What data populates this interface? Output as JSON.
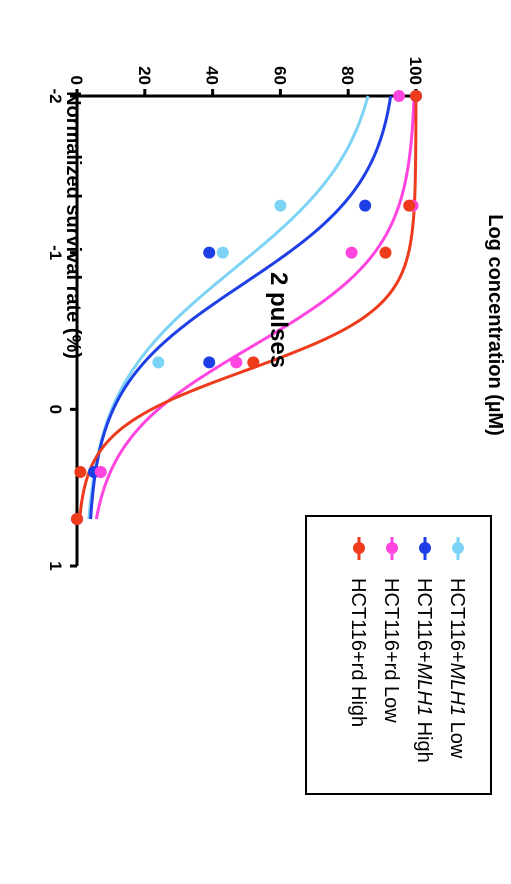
{
  "chart_data": {
    "type": "scatter",
    "annotation": "2 pulses",
    "xlabel": "Log concentration (µM)",
    "ylabel": "Normalized survival rate (%)",
    "xlim": [
      -2,
      1
    ],
    "ylim": [
      0,
      100
    ],
    "x_ticks": [
      "-2",
      "-1",
      "0",
      "1"
    ],
    "y_ticks": [
      "0",
      "20",
      "40",
      "60",
      "80",
      "100"
    ],
    "legend_position": "bottom",
    "series": [
      {
        "name": "HCT116+MLH1 Low",
        "legend": [
          {
            "t": "HCT116+",
            "i": false
          },
          {
            "t": "MLH1",
            "i": true
          },
          {
            "t": " Low",
            "i": false
          }
        ],
        "color": "#7dd3f5",
        "points": [
          [
            -2,
            100
          ],
          [
            -1.3,
            60
          ],
          [
            -1,
            43
          ],
          [
            -0.3,
            24
          ],
          [
            0.4,
            7
          ],
          [
            0.7,
            0
          ]
        ],
        "fit": {
          "top": 91,
          "bottom": 2,
          "logEC50": -0.9,
          "hill": 1.1
        }
      },
      {
        "name": "HCT116+MLH1 High",
        "legend": [
          {
            "t": "HCT116+",
            "i": false
          },
          {
            "t": "MLH1",
            "i": true
          },
          {
            "t": " High",
            "i": false
          }
        ],
        "color": "#1e3fe6",
        "points": [
          [
            -2,
            100
          ],
          [
            -1.3,
            85
          ],
          [
            -1,
            39
          ],
          [
            -0.3,
            39
          ],
          [
            0.4,
            5
          ],
          [
            0.7,
            0
          ]
        ],
        "fit": {
          "top": 95,
          "bottom": 3,
          "logEC50": -0.8,
          "hill": 1.3
        }
      },
      {
        "name": "HCT116+rd Low",
        "legend": [
          {
            "t": "HCT116+rd Low",
            "i": false
          }
        ],
        "color": "#ff44e0",
        "points": [
          [
            -2,
            95
          ],
          [
            -1.3,
            99
          ],
          [
            -1,
            81
          ],
          [
            -0.3,
            47
          ],
          [
            0.4,
            7
          ],
          [
            0.7,
            0
          ]
        ],
        "fit": {
          "top": 100,
          "bottom": 3,
          "logEC50": -0.4,
          "hill": 1.4
        }
      },
      {
        "name": "HCT116+rd High",
        "legend": [
          {
            "t": "HCT116+rd High",
            "i": false
          }
        ],
        "color": "#ee3b1b",
        "points": [
          [
            -2,
            100
          ],
          [
            -1.3,
            98
          ],
          [
            -1,
            91
          ],
          [
            -0.3,
            52
          ],
          [
            0.4,
            1
          ],
          [
            0.7,
            0
          ]
        ],
        "fit": {
          "top": 100,
          "bottom": 0,
          "logEC50": -0.25,
          "hill": 2.2
        }
      }
    ]
  }
}
